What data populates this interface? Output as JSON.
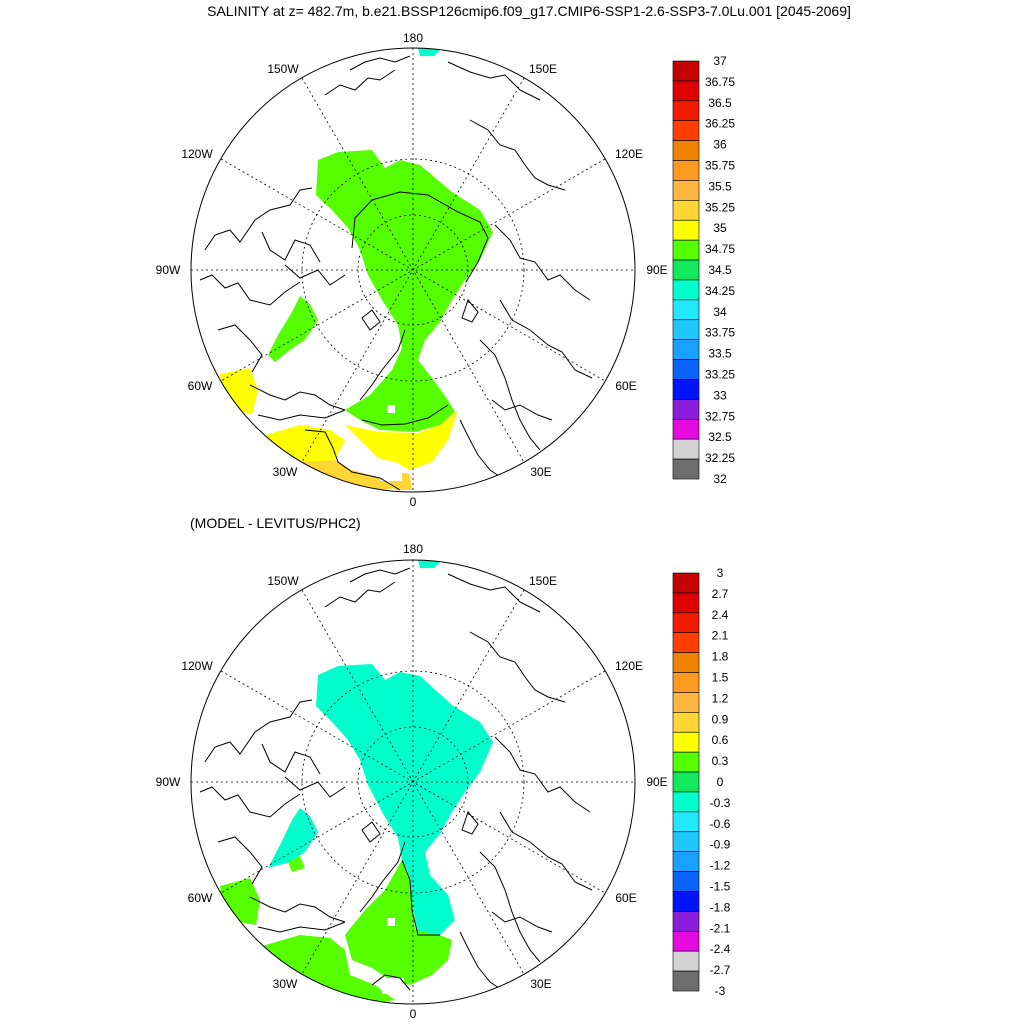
{
  "title": "SALINITY at z= 482.7m, b.e21.BSSP126cmip6.f09_g17.CMIP6-SSP1-2.6-SSP3-7.0Lu.001 [2045-2069]",
  "subtitle": "(MODEL - LEVITUS/PHC2)",
  "maps": [
    {
      "name": "salinity",
      "lon_labels": {
        "n": "180",
        "w150": "150W",
        "e150": "150E",
        "w120": "120W",
        "e120": "120E",
        "w90": "90W",
        "e90": "90E",
        "w60": "60W",
        "e60": "60E",
        "w30": "30W",
        "e30": "30E",
        "s": "0"
      },
      "colorbar": {
        "labels": [
          "37",
          "36.75",
          "36.5",
          "36.25",
          "36",
          "35.75",
          "35.5",
          "35.25",
          "35",
          "34.75",
          "34.5",
          "34.25",
          "34",
          "33.75",
          "33.5",
          "33.25",
          "33",
          "32.75",
          "32.5",
          "32.25",
          "32"
        ],
        "colors": [
          "#c40000",
          "#e00000",
          "#f21a00",
          "#ff3f00",
          "#f38200",
          "#ff9a20",
          "#ffb640",
          "#ffd633",
          "#ffff00",
          "#55ff00",
          "#12e85c",
          "#00ffcc",
          "#22e8ff",
          "#1ec8ff",
          "#1aa0ff",
          "#0a64ff",
          "#0014ff",
          "#8a1edc",
          "#e60ae0",
          "#d2d2d2",
          "#6e6e6e"
        ]
      }
    },
    {
      "name": "difference",
      "lon_labels": {
        "n": "180",
        "w150": "150W",
        "e150": "150E",
        "w120": "120W",
        "e120": "120E",
        "w90": "90W",
        "e90": "90E",
        "w60": "60W",
        "e60": "60E",
        "w30": "30W",
        "e30": "30E",
        "s": "0"
      },
      "colorbar": {
        "labels": [
          "3",
          "2.7",
          "2.4",
          "2.1",
          "1.8",
          "1.5",
          "1.2",
          "0.9",
          "0.6",
          "0.3",
          "0",
          "-0.3",
          "-0.6",
          "-0.9",
          "-1.2",
          "-1.5",
          "-1.8",
          "-2.1",
          "-2.4",
          "-2.7",
          "-3"
        ],
        "colors": [
          "#c40000",
          "#e00000",
          "#f21a00",
          "#ff3f00",
          "#f38200",
          "#ff9a20",
          "#ffb640",
          "#ffd633",
          "#ffff00",
          "#55ff00",
          "#12e85c",
          "#00ffcc",
          "#22e8ff",
          "#1ec8ff",
          "#1aa0ff",
          "#0a64ff",
          "#0014ff",
          "#8a1edc",
          "#e60ae0",
          "#d2d2d2",
          "#6e6e6e"
        ]
      }
    }
  ]
}
